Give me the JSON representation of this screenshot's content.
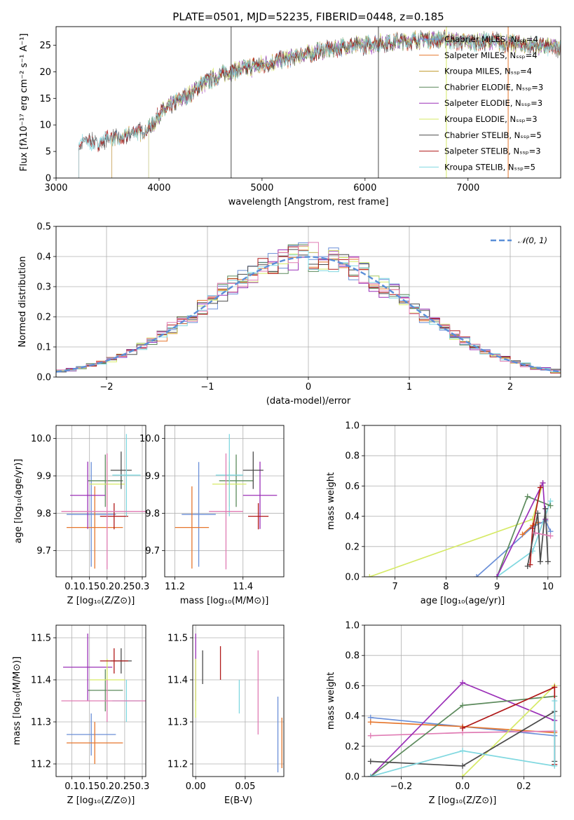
{
  "colors": {
    "Chabrier MILES": "#6a8fd8",
    "Salpeter MILES": "#e6762c",
    "Kroupa MILES": "#c09a2c",
    "Chabrier ELODIE": "#5c8a5c",
    "Salpeter ELODIE": "#9b30b8",
    "Kroupa ELODIE": "#d6ea66",
    "Chabrier STELIB": "#4a4a4a",
    "Salpeter STELIB": "#b01818",
    "Kroupa STELIB": "#80d8e0",
    "pink": "#e07cb4",
    "normal": "#5b8fd8"
  },
  "chart_data": [
    {
      "id": "spectrum",
      "type": "line",
      "title": "PLATE=0501, MJD=52235, FIBERID=0448, z=0.185",
      "xlabel": "wavelength [Angstrom, rest frame]",
      "ylabel": "Flux [fλ10⁻¹⁷ erg cm⁻² s⁻¹ A⁻¹]",
      "xlim": [
        3000,
        7900
      ],
      "ylim": [
        0,
        28.5
      ],
      "xticks": [
        3000,
        4000,
        5000,
        6000,
        7000
      ],
      "yticks": [
        0,
        5,
        10,
        15,
        20,
        25
      ],
      "legend_position": "top-right",
      "continuum": [
        [
          3200,
          6.3
        ],
        [
          3400,
          6.9
        ],
        [
          3600,
          7.5
        ],
        [
          3800,
          8.6
        ],
        [
          3950,
          10.2
        ],
        [
          4000,
          12.0
        ],
        [
          4100,
          13.5
        ],
        [
          4300,
          15.8
        ],
        [
          4400,
          17.5
        ],
        [
          4600,
          19.5
        ],
        [
          4800,
          20.5
        ],
        [
          5000,
          21.3
        ],
        [
          5200,
          22.3
        ],
        [
          5400,
          23.2
        ],
        [
          5600,
          24.0
        ],
        [
          5800,
          24.8
        ],
        [
          6000,
          25.0
        ],
        [
          6200,
          25.5
        ],
        [
          6400,
          25.8
        ],
        [
          6600,
          26.2
        ],
        [
          6800,
          26.0
        ],
        [
          7000,
          25.5
        ],
        [
          7200,
          25.8
        ],
        [
          7400,
          25.3
        ],
        [
          7900,
          24.5
        ]
      ],
      "series": [
        {
          "name": "Chabrier MILES, Nₛₛₚ=4",
          "start": 3540
        },
        {
          "name": "Salpeter MILES, Nₛₛₚ=4",
          "start": 3540
        },
        {
          "name": "Kroupa MILES, Nₛₛₚ=4",
          "start": 3540
        },
        {
          "name": "Chabrier ELODIE, Nₛₛₚ=3",
          "start": 3900
        },
        {
          "name": "Salpeter ELODIE, Nₛₛₚ=3",
          "start": 3900
        },
        {
          "name": "Kroupa ELODIE, Nₛₛₚ=3",
          "start": 3900
        },
        {
          "name": "Chabrier STELIB, Nₛₛₚ=5",
          "start": 3220
        },
        {
          "name": "Salpeter STELIB, Nₛₛₚ=3",
          "start": 3220
        },
        {
          "name": "Kroupa STELIB, Nₛₛₚ=5",
          "start": 3220
        }
      ]
    },
    {
      "id": "residuals",
      "type": "line",
      "xlabel": "(data-model)/error",
      "ylabel": "Normed distribution",
      "xlim": [
        -2.5,
        2.5
      ],
      "ylim": [
        0,
        0.5
      ],
      "xticks": [
        -2,
        -1,
        0,
        1,
        2
      ],
      "yticks": [
        0.0,
        0.1,
        0.2,
        0.3,
        0.4,
        0.5
      ],
      "legend": "𝒩(0, 1)",
      "legend_position": "top-right",
      "bin_width": 0.1,
      "curve": "normal(0,1)"
    },
    {
      "id": "age-vs-Z",
      "type": "scatter",
      "xlabel": "Z [log₁₀(Z/Z⊙)]",
      "ylabel": "age  [log₁₀(age/yr)]",
      "xlim": [
        0.055,
        0.31
      ],
      "ylim": [
        9.63,
        10.035
      ],
      "xticks": [
        0.1,
        0.15,
        0.2,
        0.25,
        0.3
      ],
      "yticks": [
        9.7,
        9.8,
        9.9,
        10.0
      ],
      "points": [
        {
          "c": "Chabrier MILES",
          "x": 0.155,
          "y": 9.797,
          "xerr": 0.07,
          "yerr": 0.14
        },
        {
          "c": "Salpeter MILES",
          "x": 0.165,
          "y": 9.762,
          "xerr": 0.08,
          "yerr": 0.11
        },
        {
          "c": "Chabrier ELODIE",
          "x": 0.195,
          "y": 9.887,
          "xerr": 0.05,
          "yerr": 0.07
        },
        {
          "c": "Salpeter ELODIE",
          "x": 0.145,
          "y": 9.848,
          "xerr": 0.05,
          "yerr": 0.09
        },
        {
          "c": "Kroupa ELODIE",
          "x": 0.2,
          "y": 9.878,
          "xerr": 0.05,
          "yerr": 0.06
        },
        {
          "c": "Chabrier STELIB",
          "x": 0.24,
          "y": 9.915,
          "xerr": 0.03,
          "yerr": 0.05
        },
        {
          "c": "Salpeter STELIB",
          "x": 0.22,
          "y": 9.792,
          "xerr": 0.04,
          "yerr": 0.035
        },
        {
          "c": "Kroupa STELIB",
          "x": 0.255,
          "y": 9.902,
          "xerr": 0.04,
          "yerr": 0.11
        },
        {
          "c": "pink",
          "x": 0.2,
          "y": 9.805,
          "xerr": 0.13,
          "yerr": 0.155
        }
      ]
    },
    {
      "id": "age-vs-mass",
      "type": "scatter",
      "xlabel": "mass [log₁₀(M/M⊙)]",
      "xlim": [
        11.17,
        11.52
      ],
      "ylim": [
        9.63,
        10.035
      ],
      "xticks": [
        11.2,
        11.4
      ],
      "yticks": [
        9.7,
        9.8,
        9.9,
        10.0
      ],
      "points": [
        {
          "c": "Chabrier MILES",
          "x": 11.27,
          "y": 9.797,
          "xerr": 0.05,
          "yerr": 0.14
        },
        {
          "c": "Salpeter MILES",
          "x": 11.25,
          "y": 9.762,
          "xerr": 0.05,
          "yerr": 0.11
        },
        {
          "c": "Chabrier ELODIE",
          "x": 11.38,
          "y": 9.887,
          "xerr": 0.05,
          "yerr": 0.07
        },
        {
          "c": "Salpeter ELODIE",
          "x": 11.45,
          "y": 9.848,
          "xerr": 0.05,
          "yerr": 0.09
        },
        {
          "c": "Kroupa ELODIE",
          "x": 11.36,
          "y": 9.878,
          "xerr": 0.05,
          "yerr": 0.06
        },
        {
          "c": "Chabrier STELIB",
          "x": 11.43,
          "y": 9.915,
          "xerr": 0.03,
          "yerr": 0.05
        },
        {
          "c": "Salpeter STELIB",
          "x": 11.445,
          "y": 9.792,
          "xerr": 0.03,
          "yerr": 0.035
        },
        {
          "c": "Kroupa STELIB",
          "x": 11.36,
          "y": 9.902,
          "xerr": 0.04,
          "yerr": 0.11
        },
        {
          "c": "pink",
          "x": 11.35,
          "y": 9.805,
          "xerr": 0.05,
          "yerr": 0.155
        }
      ]
    },
    {
      "id": "weight-vs-age",
      "type": "line",
      "xlabel": "age  [log₁₀(age/yr)]",
      "ylabel": "mass weight",
      "xlim": [
        6.4,
        10.25
      ],
      "ylim": [
        0,
        1.0
      ],
      "xticks": [
        7,
        8,
        9,
        10
      ],
      "yticks": [
        0.0,
        0.2,
        0.4,
        0.6,
        0.8,
        1.0
      ],
      "series": [
        {
          "c": "Kroupa ELODIE",
          "x": [
            6.5,
            9.7,
            9.9
          ],
          "y": [
            0.0,
            0.38,
            0.62
          ]
        },
        {
          "c": "Chabrier MILES",
          "x": [
            8.6,
            9.7,
            9.95,
            10.05
          ],
          "y": [
            0.0,
            0.33,
            0.37,
            0.3
          ]
        },
        {
          "c": "Kroupa STELIB",
          "x": [
            9.0,
            9.7,
            10.05
          ],
          "y": [
            0.0,
            0.17,
            0.5
          ]
        },
        {
          "c": "Chabrier ELODIE",
          "x": [
            9.0,
            9.6,
            10.05
          ],
          "y": [
            0.0,
            0.53,
            0.47
          ]
        },
        {
          "c": "Salpeter MILES",
          "x": [
            9.5,
            9.7,
            9.8
          ],
          "y": [
            0.28,
            0.34,
            0.36
          ]
        },
        {
          "c": "Salpeter ELODIE",
          "x": [
            9.0,
            9.9,
            9.95
          ],
          "y": [
            0.0,
            0.62,
            0.38
          ]
        },
        {
          "c": "Salpeter STELIB",
          "x": [
            9.65,
            9.7,
            9.85
          ],
          "y": [
            0.08,
            0.32,
            0.59
          ]
        },
        {
          "c": "Chabrier STELIB",
          "x": [
            9.6,
            9.8,
            9.85,
            9.95,
            10.0
          ],
          "y": [
            0.07,
            0.42,
            0.1,
            0.45,
            0.1
          ]
        },
        {
          "c": "pink",
          "x": [
            9.75,
            10.05
          ],
          "y": [
            0.29,
            0.27
          ]
        }
      ]
    },
    {
      "id": "mass-vs-Z",
      "type": "scatter",
      "xlabel": "Z [log₁₀(Z/Z⊙)]",
      "ylabel": "mass [log₁₀(M/M⊙)]",
      "xlim": [
        0.055,
        0.31
      ],
      "ylim": [
        11.17,
        11.53
      ],
      "xticks": [
        0.1,
        0.15,
        0.2,
        0.25,
        0.3
      ],
      "yticks": [
        11.2,
        11.3,
        11.4,
        11.5
      ],
      "points": [
        {
          "c": "Chabrier MILES",
          "x": 0.155,
          "y": 11.27,
          "xerr": 0.07,
          "yerr": 0.05
        },
        {
          "c": "Salpeter MILES",
          "x": 0.165,
          "y": 11.25,
          "xerr": 0.08,
          "yerr": 0.05
        },
        {
          "c": "Chabrier ELODIE",
          "x": 0.195,
          "y": 11.375,
          "xerr": 0.05,
          "yerr": 0.05
        },
        {
          "c": "Salpeter ELODIE",
          "x": 0.145,
          "y": 11.43,
          "xerr": 0.07,
          "yerr": 0.08
        },
        {
          "c": "Kroupa ELODIE",
          "x": 0.2,
          "y": 11.4,
          "xerr": 0.05,
          "yerr": 0.05
        },
        {
          "c": "Chabrier STELIB",
          "x": 0.24,
          "y": 11.445,
          "xerr": 0.03,
          "yerr": 0.03
        },
        {
          "c": "Salpeter STELIB",
          "x": 0.22,
          "y": 11.445,
          "xerr": 0.04,
          "yerr": 0.03
        },
        {
          "c": "Kroupa STELIB",
          "x": 0.255,
          "y": 11.35,
          "xerr": 0.04,
          "yerr": 0.05
        },
        {
          "c": "pink",
          "x": 0.2,
          "y": 11.35,
          "xerr": 0.13,
          "yerr": 0.05
        }
      ]
    },
    {
      "id": "mass-vs-ebv",
      "type": "scatter",
      "xlabel": "E(B-V)",
      "xlim": [
        -0.003,
        0.089
      ],
      "ylim": [
        11.17,
        11.53
      ],
      "xticks": [
        0.0,
        0.05
      ],
      "yticks": [
        11.2,
        11.3,
        11.4,
        11.5
      ],
      "points": [
        {
          "c": "Salpeter ELODIE",
          "x": 0.0,
          "y": 11.43,
          "yerr": 0.08
        },
        {
          "c": "Kroupa ELODIE",
          "x": 0.0,
          "y": 11.38,
          "yerr": 0.07
        },
        {
          "c": "Chabrier STELIB",
          "x": 0.007,
          "y": 11.43,
          "yerr": 0.04
        },
        {
          "c": "Salpeter STELIB",
          "x": 0.025,
          "y": 11.44,
          "yerr": 0.04
        },
        {
          "c": "Kroupa STELIB",
          "x": 0.044,
          "y": 11.36,
          "yerr": 0.04
        },
        {
          "c": "pink",
          "x": 0.063,
          "y": 11.37,
          "yerr": 0.1
        },
        {
          "c": "Chabrier MILES",
          "x": 0.083,
          "y": 11.27,
          "yerr": 0.09
        },
        {
          "c": "Salpeter MILES",
          "x": 0.087,
          "y": 11.25,
          "yerr": 0.06
        }
      ]
    },
    {
      "id": "weight-vs-Z",
      "type": "line",
      "xlabel": "Z [log₁₀(Z/Z⊙)]",
      "ylabel": "mass weight",
      "xlim": [
        -0.32,
        0.32
      ],
      "ylim": [
        0,
        1.0
      ],
      "xticks": [
        -0.2,
        0.0,
        0.2
      ],
      "yticks": [
        0.0,
        0.2,
        0.4,
        0.6,
        0.8,
        1.0
      ],
      "series": [
        {
          "c": "Chabrier MILES",
          "x": [
            -0.3,
            0.0,
            0.3
          ],
          "y": [
            0.39,
            0.33,
            0.27
          ]
        },
        {
          "c": "Salpeter MILES",
          "x": [
            -0.3,
            0.0,
            0.3
          ],
          "y": [
            0.36,
            0.33,
            0.29
          ]
        },
        {
          "c": "pink",
          "x": [
            -0.3,
            0.0,
            0.3
          ],
          "y": [
            0.27,
            0.29,
            0.3
          ]
        },
        {
          "c": "Salpeter ELODIE",
          "x": [
            -0.3,
            0.0,
            0.3
          ],
          "y": [
            0.0,
            0.62,
            0.37
          ]
        },
        {
          "c": "Chabrier ELODIE",
          "x": [
            -0.3,
            0.0,
            0.3
          ],
          "y": [
            0.0,
            0.47,
            0.53
          ]
        },
        {
          "c": "Kroupa ELODIE",
          "x": [
            0.0,
            0.3
          ],
          "y": [
            0.0,
            0.6
          ]
        },
        {
          "c": "Salpeter STELIB",
          "x": [
            0.0,
            0.3,
            0.3
          ],
          "y": [
            0.32,
            0.59,
            0.08
          ]
        },
        {
          "c": "Chabrier STELIB",
          "x": [
            -0.3,
            0.0,
            0.3,
            0.3
          ],
          "y": [
            0.1,
            0.07,
            0.43,
            0.1
          ]
        },
        {
          "c": "Kroupa STELIB",
          "x": [
            -0.3,
            0.0,
            0.3,
            0.3
          ],
          "y": [
            0.0,
            0.17,
            0.07,
            0.5
          ]
        }
      ]
    }
  ]
}
